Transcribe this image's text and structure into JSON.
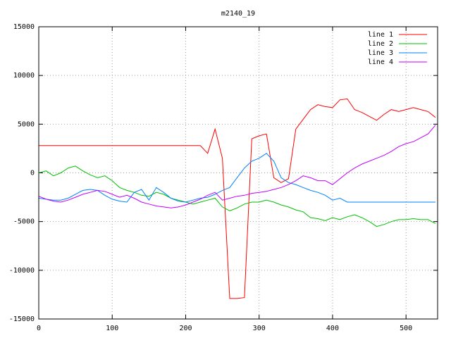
{
  "chart_data": {
    "type": "line",
    "title": "m2140_19",
    "x": [
      0,
      10,
      20,
      30,
      40,
      50,
      60,
      70,
      80,
      90,
      100,
      110,
      120,
      130,
      140,
      150,
      160,
      170,
      180,
      190,
      200,
      210,
      220,
      230,
      240,
      250,
      260,
      270,
      280,
      290,
      300,
      310,
      320,
      330,
      340,
      350,
      360,
      370,
      380,
      390,
      400,
      410,
      420,
      430,
      440,
      450,
      460,
      470,
      480,
      490,
      500,
      510,
      520,
      530,
      540
    ],
    "series": [
      {
        "name": "line 1",
        "color": "#ff0000",
        "values": [
          2800,
          2800,
          2800,
          2800,
          2800,
          2800,
          2800,
          2800,
          2800,
          2800,
          2800,
          2800,
          2800,
          2800,
          2800,
          2800,
          2800,
          2800,
          2800,
          2800,
          2800,
          2800,
          2800,
          2000,
          4500,
          1500,
          -12900,
          -12900,
          -12800,
          3500,
          3800,
          4000,
          -500,
          -1000,
          -600,
          4500,
          5500,
          6500,
          7000,
          6800,
          6700,
          7500,
          7600,
          6500,
          6200,
          5800,
          5400,
          6000,
          6500,
          6300,
          6500,
          6700,
          6500,
          6300,
          5700
        ]
      },
      {
        "name": "line 2",
        "color": "#00c000",
        "values": [
          0,
          200,
          -300,
          0,
          500,
          700,
          200,
          -200,
          -500,
          -300,
          -800,
          -1500,
          -1800,
          -2000,
          -2300,
          -2400,
          -2000,
          -2200,
          -2600,
          -2800,
          -3000,
          -3200,
          -3000,
          -2800,
          -2600,
          -3500,
          -3900,
          -3600,
          -3200,
          -3000,
          -3000,
          -2800,
          -3000,
          -3300,
          -3500,
          -3800,
          -4000,
          -4600,
          -4700,
          -4900,
          -4600,
          -4800,
          -4500,
          -4300,
          -4600,
          -5000,
          -5500,
          -5300,
          -5000,
          -4800,
          -4800,
          -4700,
          -4800,
          -4800,
          -5200
        ]
      },
      {
        "name": "line 3",
        "color": "#0080ff",
        "values": [
          -2600,
          -2700,
          -2800,
          -2800,
          -2600,
          -2200,
          -1800,
          -1700,
          -1800,
          -2300,
          -2700,
          -2900,
          -3000,
          -2000,
          -1700,
          -2800,
          -1500,
          -2000,
          -2600,
          -2900,
          -3000,
          -2800,
          -2600,
          -2500,
          -2200,
          -1800,
          -1500,
          -500,
          500,
          1200,
          1500,
          2000,
          1200,
          -500,
          -1000,
          -1200,
          -1500,
          -1800,
          -2000,
          -2300,
          -2800,
          -2600,
          -3000,
          -3000,
          -3000,
          -3000,
          -3000,
          -3000,
          -3000,
          -3000,
          -3000,
          -3000,
          -3000,
          -3000,
          -3000
        ]
      },
      {
        "name": "line 4",
        "color": "#c000ff",
        "values": [
          -2400,
          -2700,
          -2900,
          -3000,
          -2800,
          -2500,
          -2200,
          -2000,
          -1800,
          -1900,
          -2200,
          -2500,
          -2300,
          -2600,
          -3000,
          -3200,
          -3400,
          -3500,
          -3600,
          -3500,
          -3300,
          -3000,
          -2700,
          -2300,
          -2000,
          -2800,
          -2600,
          -2400,
          -2300,
          -2100,
          -2000,
          -1900,
          -1700,
          -1500,
          -1200,
          -800,
          -300,
          -500,
          -800,
          -800,
          -1200,
          -600,
          0,
          500,
          900,
          1200,
          1500,
          1800,
          2200,
          2700,
          3000,
          3200,
          3600,
          4000,
          4900
        ]
      }
    ],
    "xlim": [
      0,
      543
    ],
    "ylim": [
      -15000,
      15000
    ],
    "xticks": [
      0,
      100,
      200,
      300,
      400,
      500
    ],
    "yticks": [
      -15000,
      -10000,
      -5000,
      0,
      5000,
      10000,
      15000
    ],
    "grid": true,
    "legend": "top-right"
  }
}
